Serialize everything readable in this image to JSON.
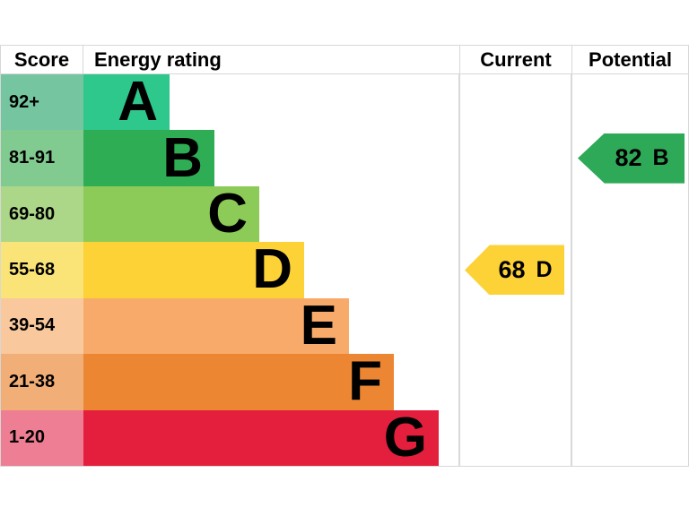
{
  "header": {
    "score": "Score",
    "rating": "Energy rating",
    "current": "Current",
    "potential": "Potential"
  },
  "colors": {
    "border": "#d7d7d7",
    "text": "#000000",
    "current_arrow": "#fcd237",
    "potential_arrow": "#2ea958"
  },
  "chart_data": {
    "type": "bar",
    "title": "EPC energy efficiency rating chart",
    "categories": [
      "A",
      "B",
      "C",
      "D",
      "E",
      "F",
      "G"
    ],
    "bands": [
      {
        "score": "92+",
        "letter": "A",
        "band_color": "#2ec78c",
        "score_color": "#74c5a0",
        "band_width": 96
      },
      {
        "score": "81-91",
        "letter": "B",
        "band_color": "#2ead55",
        "score_color": "#81cb90",
        "band_width": 146
      },
      {
        "score": "69-80",
        "letter": "C",
        "band_color": "#8ccb57",
        "score_color": "#acd688",
        "band_width": 196
      },
      {
        "score": "55-68",
        "letter": "D",
        "band_color": "#fcd237",
        "score_color": "#fae377",
        "band_width": 246
      },
      {
        "score": "39-54",
        "letter": "E",
        "band_color": "#f8aa6b",
        "score_color": "#f9c89d",
        "band_width": 296
      },
      {
        "score": "21-38",
        "letter": "F",
        "band_color": "#ec8633",
        "score_color": "#f1ae76",
        "band_width": 346
      },
      {
        "score": "1-20",
        "letter": "G",
        "band_color": "#e41f3d",
        "score_color": "#ee7e93",
        "band_width": 396
      }
    ],
    "current": {
      "value": "68",
      "letter": "D",
      "row_index": 3
    },
    "potential": {
      "value": "82",
      "letter": "B",
      "row_index": 1
    }
  }
}
